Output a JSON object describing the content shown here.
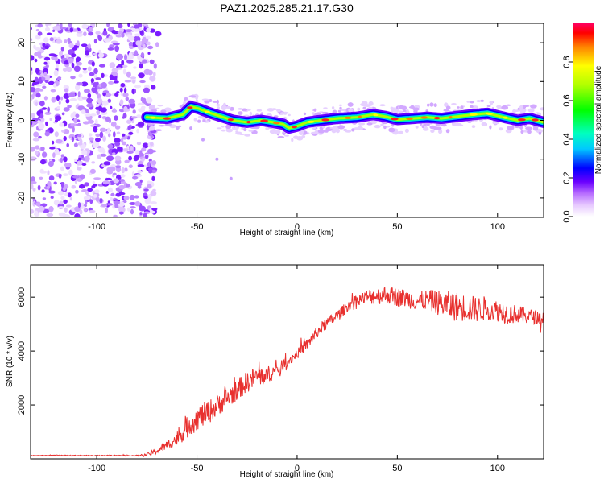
{
  "chart_data": [
    {
      "type": "heatmap",
      "title": "PAZ1.2025.285.21.17.G30",
      "xlabel": "Height of straight line (km)",
      "ylabel": "Frequency (Hz)",
      "xlim": [
        -133,
        123
      ],
      "ylim": [
        -25,
        25
      ],
      "xticks": [
        -100,
        -50,
        0,
        50,
        100
      ],
      "yticks": [
        20,
        10,
        0,
        -10,
        -20
      ],
      "colorbar": {
        "label": "Normalized spectral amplitude",
        "range": [
          0,
          1
        ],
        "ticks": [
          0.0,
          0.2,
          0.4,
          0.6,
          0.8
        ],
        "tick_labels": [
          "0.0",
          "0.2",
          "0.4",
          "0.6",
          "0.8"
        ]
      },
      "noise_region_x": [
        -133,
        -71
      ],
      "ridge": [
        {
          "x": -75,
          "f": 0.8
        },
        {
          "x": -65,
          "f": 0.5
        },
        {
          "x": -57,
          "f": 1.5
        },
        {
          "x": -53,
          "f": 3.5
        },
        {
          "x": -49,
          "f": 3.0
        },
        {
          "x": -44,
          "f": 2.0
        },
        {
          "x": -38,
          "f": 1.0
        },
        {
          "x": -32,
          "f": 0.0
        },
        {
          "x": -25,
          "f": -0.5
        },
        {
          "x": -18,
          "f": 0.0
        },
        {
          "x": -12,
          "f": -0.5
        },
        {
          "x": -7,
          "f": -1.0
        },
        {
          "x": -4,
          "f": -2.0
        },
        {
          "x": 0,
          "f": -1.5
        },
        {
          "x": 5,
          "f": -0.5
        },
        {
          "x": 12,
          "f": 0.0
        },
        {
          "x": 20,
          "f": 0.5
        },
        {
          "x": 30,
          "f": 0.8
        },
        {
          "x": 38,
          "f": 1.5
        },
        {
          "x": 44,
          "f": 1.0
        },
        {
          "x": 50,
          "f": 0.2
        },
        {
          "x": 58,
          "f": 0.5
        },
        {
          "x": 65,
          "f": 0.8
        },
        {
          "x": 72,
          "f": 0.5
        },
        {
          "x": 80,
          "f": 1.0
        },
        {
          "x": 88,
          "f": 1.5
        },
        {
          "x": 95,
          "f": 1.8
        },
        {
          "x": 103,
          "f": 0.8
        },
        {
          "x": 110,
          "f": 0.0
        },
        {
          "x": 116,
          "f": 0.5
        },
        {
          "x": 123,
          "f": -0.5
        }
      ],
      "secondary_trace": [
        {
          "x": -53,
          "f": -2.0
        },
        {
          "x": -47,
          "f": -5.0
        },
        {
          "x": -40,
          "f": -10.0
        },
        {
          "x": -33,
          "f": -15.0
        }
      ]
    },
    {
      "type": "line",
      "xlabel": "Height of straight line (km)",
      "ylabel": "SNR (10 * v/v)",
      "xlim": [
        -133,
        123
      ],
      "ylim": [
        0,
        7200
      ],
      "xticks": [
        -100,
        -50,
        0,
        50,
        100
      ],
      "yticks": [
        2000,
        4000,
        6000
      ],
      "series": [
        {
          "name": "SNR",
          "color": "#e8302e",
          "x": [
            -133,
            -120,
            -100,
            -90,
            -80,
            -75,
            -70,
            -65,
            -60,
            -55,
            -50,
            -45,
            -40,
            -35,
            -30,
            -25,
            -20,
            -15,
            -10,
            -5,
            0,
            5,
            10,
            15,
            20,
            25,
            30,
            35,
            40,
            45,
            50,
            55,
            60,
            65,
            70,
            75,
            80,
            85,
            90,
            95,
            100,
            105,
            110,
            115,
            120,
            123
          ],
          "y": [
            120,
            130,
            120,
            130,
            120,
            150,
            300,
            500,
            750,
            1150,
            1500,
            1700,
            1950,
            2250,
            2550,
            2850,
            3050,
            3100,
            3300,
            3600,
            3900,
            4250,
            4700,
            5050,
            5300,
            5650,
            5900,
            6000,
            6050,
            6100,
            6000,
            5950,
            5850,
            5900,
            5800,
            5700,
            5650,
            5600,
            5550,
            5600,
            5500,
            5400,
            5350,
            5300,
            5250,
            5200
          ],
          "jitter": [
            10,
            15,
            15,
            15,
            20,
            50,
            120,
            180,
            280,
            400,
            450,
            450,
            420,
            420,
            400,
            400,
            380,
            340,
            250,
            200,
            180,
            200,
            220,
            220,
            220,
            200,
            200,
            280,
            320,
            350,
            350,
            350,
            350,
            380,
            450,
            550,
            550,
            500,
            480,
            450,
            400,
            400,
            350,
            300,
            250,
            250
          ]
        }
      ]
    }
  ]
}
